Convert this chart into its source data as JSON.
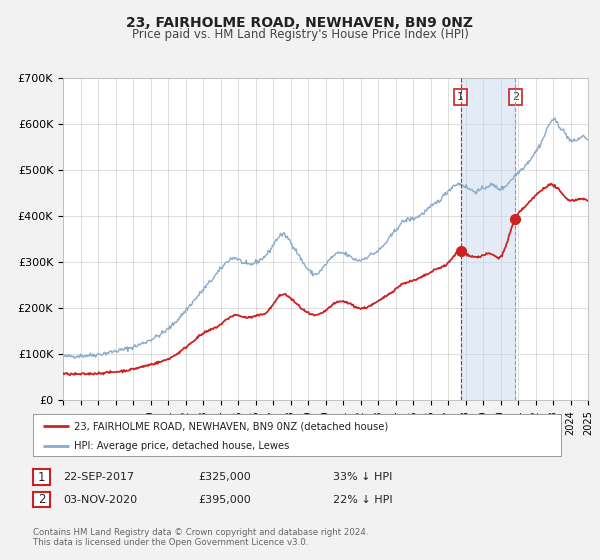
{
  "title": "23, FAIRHOLME ROAD, NEWHAVEN, BN9 0NZ",
  "subtitle": "Price paid vs. HM Land Registry's House Price Index (HPI)",
  "ylim": [
    0,
    700000
  ],
  "yticks": [
    0,
    100000,
    200000,
    300000,
    400000,
    500000,
    600000,
    700000
  ],
  "ytick_labels": [
    "£0",
    "£100K",
    "£200K",
    "£300K",
    "£400K",
    "£500K",
    "£600K",
    "£700K"
  ],
  "xlim": [
    1995,
    2025
  ],
  "background_color": "#f2f2f2",
  "plot_bg_color": "#ffffff",
  "grid_color": "#d0d0d0",
  "hpi_color": "#88aacc",
  "price_color": "#cc2222",
  "sale1_date": 2017.72,
  "sale1_price": 325000,
  "sale2_date": 2020.84,
  "sale2_price": 395000,
  "legend_text1": "23, FAIRHOLME ROAD, NEWHAVEN, BN9 0NZ (detached house)",
  "legend_text2": "HPI: Average price, detached house, Lewes",
  "footer1": "Contains HM Land Registry data © Crown copyright and database right 2024.",
  "footer2": "This data is licensed under the Open Government Licence v3.0.",
  "table_row1": [
    "1",
    "22-SEP-2017",
    "£325,000",
    "33% ↓ HPI"
  ],
  "table_row2": [
    "2",
    "03-NOV-2020",
    "£395,000",
    "22% ↓ HPI"
  ],
  "hpi_anchors": [
    [
      1995.0,
      95000
    ],
    [
      1996.0,
      97000
    ],
    [
      1997.0,
      100000
    ],
    [
      1998.0,
      107000
    ],
    [
      1999.0,
      116000
    ],
    [
      2000.0,
      132000
    ],
    [
      2001.0,
      155000
    ],
    [
      2002.0,
      195000
    ],
    [
      2003.0,
      240000
    ],
    [
      2004.0,
      285000
    ],
    [
      2004.8,
      310000
    ],
    [
      2005.5,
      295000
    ],
    [
      2006.0,
      300000
    ],
    [
      2006.8,
      325000
    ],
    [
      2007.5,
      360000
    ],
    [
      2008.0,
      345000
    ],
    [
      2008.8,
      295000
    ],
    [
      2009.5,
      275000
    ],
    [
      2010.0,
      295000
    ],
    [
      2010.5,
      315000
    ],
    [
      2011.0,
      320000
    ],
    [
      2011.5,
      310000
    ],
    [
      2012.0,
      305000
    ],
    [
      2012.5,
      315000
    ],
    [
      2013.0,
      325000
    ],
    [
      2013.5,
      345000
    ],
    [
      2014.0,
      370000
    ],
    [
      2014.5,
      390000
    ],
    [
      2015.0,
      395000
    ],
    [
      2015.5,
      405000
    ],
    [
      2016.0,
      420000
    ],
    [
      2016.5,
      435000
    ],
    [
      2017.0,
      455000
    ],
    [
      2017.5,
      470000
    ],
    [
      2018.0,
      465000
    ],
    [
      2018.5,
      455000
    ],
    [
      2019.0,
      460000
    ],
    [
      2019.5,
      468000
    ],
    [
      2020.0,
      460000
    ],
    [
      2020.5,
      475000
    ],
    [
      2021.0,
      495000
    ],
    [
      2021.5,
      515000
    ],
    [
      2022.0,
      540000
    ],
    [
      2022.5,
      575000
    ],
    [
      2023.0,
      610000
    ],
    [
      2023.3,
      600000
    ],
    [
      2023.8,
      575000
    ],
    [
      2024.0,
      565000
    ],
    [
      2024.5,
      570000
    ],
    [
      2025.0,
      565000
    ]
  ],
  "price_anchors": [
    [
      1995.0,
      58000
    ],
    [
      1996.0,
      57000
    ],
    [
      1997.0,
      59000
    ],
    [
      1998.0,
      62000
    ],
    [
      1999.0,
      68000
    ],
    [
      2000.0,
      78000
    ],
    [
      2001.0,
      90000
    ],
    [
      2002.0,
      115000
    ],
    [
      2003.0,
      145000
    ],
    [
      2004.0,
      165000
    ],
    [
      2004.8,
      185000
    ],
    [
      2005.5,
      180000
    ],
    [
      2006.0,
      183000
    ],
    [
      2006.8,
      198000
    ],
    [
      2007.5,
      230000
    ],
    [
      2008.0,
      222000
    ],
    [
      2008.8,
      195000
    ],
    [
      2009.5,
      185000
    ],
    [
      2010.0,
      195000
    ],
    [
      2010.5,
      210000
    ],
    [
      2011.0,
      215000
    ],
    [
      2011.5,
      208000
    ],
    [
      2012.0,
      200000
    ],
    [
      2012.5,
      205000
    ],
    [
      2013.0,
      215000
    ],
    [
      2013.5,
      228000
    ],
    [
      2014.0,
      242000
    ],
    [
      2014.5,
      255000
    ],
    [
      2015.0,
      260000
    ],
    [
      2015.5,
      268000
    ],
    [
      2016.0,
      278000
    ],
    [
      2016.5,
      288000
    ],
    [
      2017.0,
      298000
    ],
    [
      2017.72,
      325000
    ],
    [
      2018.0,
      320000
    ],
    [
      2018.5,
      312000
    ],
    [
      2019.0,
      315000
    ],
    [
      2019.5,
      318000
    ],
    [
      2020.0,
      312000
    ],
    [
      2020.84,
      395000
    ],
    [
      2021.0,
      405000
    ],
    [
      2021.5,
      425000
    ],
    [
      2022.0,
      445000
    ],
    [
      2022.5,
      462000
    ],
    [
      2023.0,
      468000
    ],
    [
      2023.5,
      450000
    ],
    [
      2024.0,
      435000
    ],
    [
      2024.5,
      438000
    ],
    [
      2025.0,
      432000
    ]
  ]
}
